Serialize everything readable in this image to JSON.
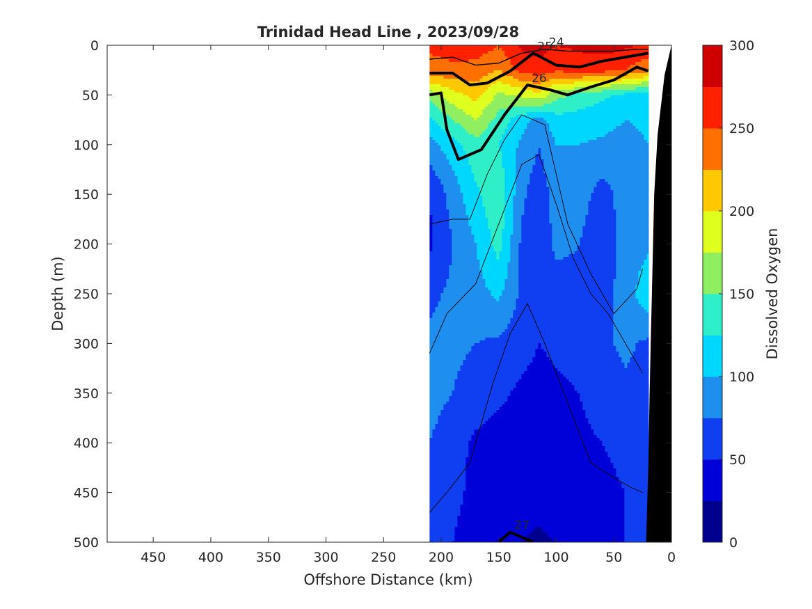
{
  "chart_data": {
    "type": "heatmap",
    "title": "Trinidad Head Line , 2023/09/28",
    "xlabel": "Offshore Distance (km)",
    "ylabel": "Depth (m)",
    "colorbar_label": "Dissolved Oxygen",
    "xlim": [
      490,
      0
    ],
    "ylim": [
      0,
      500
    ],
    "x_ticks": [
      450,
      400,
      350,
      300,
      250,
      200,
      150,
      100,
      50,
      0
    ],
    "y_ticks": [
      0,
      50,
      100,
      150,
      200,
      250,
      300,
      350,
      400,
      450,
      500
    ],
    "colorbar_range": [
      0,
      300
    ],
    "colorbar_ticks": [
      0,
      50,
      100,
      150,
      200,
      250,
      300
    ],
    "colorbar_levels": 12,
    "colormap": [
      "#00008f",
      "#0000d8",
      "#0f3ff0",
      "#1f8fef",
      "#00d7ff",
      "#2fefc8",
      "#8fef60",
      "#dfff1f",
      "#ffc800",
      "#ff7000",
      "#ff2000",
      "#cf0000"
    ],
    "data_coverage_km": [
      210,
      20
    ],
    "x": [
      210,
      190,
      170,
      150,
      130,
      115,
      100,
      80,
      60,
      40,
      20
    ],
    "y": [
      0,
      25,
      50,
      75,
      100,
      150,
      200,
      250,
      300,
      350,
      400,
      450,
      500
    ],
    "z": [
      [
        255,
        260,
        265,
        250,
        280,
        285,
        275,
        280,
        285,
        280,
        270
      ],
      [
        240,
        245,
        240,
        225,
        260,
        265,
        255,
        260,
        260,
        250,
        230
      ],
      [
        160,
        190,
        210,
        170,
        180,
        195,
        160,
        140,
        130,
        120,
        115
      ],
      [
        120,
        150,
        175,
        140,
        110,
        90,
        115,
        115,
        110,
        100,
        105
      ],
      [
        90,
        115,
        140,
        125,
        95,
        75,
        100,
        100,
        95,
        90,
        100
      ],
      [
        50,
        85,
        120,
        145,
        80,
        60,
        85,
        85,
        65,
        85,
        95
      ],
      [
        45,
        75,
        100,
        135,
        70,
        60,
        80,
        75,
        60,
        85,
        95
      ],
      [
        70,
        80,
        90,
        105,
        70,
        55,
        65,
        70,
        65,
        85,
        120
      ],
      [
        80,
        80,
        75,
        70,
        60,
        50,
        55,
        60,
        70,
        80,
        70
      ],
      [
        85,
        75,
        65,
        55,
        45,
        40,
        45,
        50,
        60,
        70,
        65
      ],
      [
        75,
        60,
        45,
        40,
        40,
        35,
        40,
        45,
        50,
        55,
        60
      ],
      [
        65,
        55,
        45,
        40,
        35,
        35,
        40,
        40,
        45,
        50,
        55
      ],
      [
        60,
        50,
        40,
        30,
        25,
        20,
        25,
        40,
        45,
        50,
        55
      ]
    ],
    "density_contours": [
      {
        "label": "24",
        "bold": false,
        "points": [
          [
            210,
            14
          ],
          [
            190,
            12
          ],
          [
            170,
            20
          ],
          [
            150,
            18
          ],
          [
            130,
            8
          ],
          [
            110,
            4
          ],
          [
            90,
            6
          ],
          [
            70,
            6
          ],
          [
            50,
            6
          ],
          [
            30,
            4
          ],
          [
            20,
            4
          ]
        ]
      },
      {
        "label": "25",
        "bold": true,
        "points": [
          [
            210,
            28
          ],
          [
            190,
            28
          ],
          [
            175,
            40
          ],
          [
            160,
            38
          ],
          [
            140,
            26
          ],
          [
            120,
            8
          ],
          [
            100,
            20
          ],
          [
            80,
            22
          ],
          [
            60,
            16
          ],
          [
            40,
            12
          ],
          [
            20,
            8
          ]
        ]
      },
      {
        "label": "26",
        "bold": true,
        "points": [
          [
            210,
            50
          ],
          [
            200,
            48
          ],
          [
            195,
            85
          ],
          [
            185,
            115
          ],
          [
            165,
            105
          ],
          [
            145,
            70
          ],
          [
            125,
            40
          ],
          [
            105,
            45
          ],
          [
            90,
            50
          ],
          [
            70,
            42
          ],
          [
            50,
            35
          ],
          [
            30,
            22
          ],
          [
            20,
            26
          ]
        ]
      },
      {
        "label": "27",
        "bold": true,
        "points": [
          [
            150,
            500
          ],
          [
            140,
            490
          ],
          [
            120,
            500
          ]
        ]
      }
    ],
    "thin_contours": [
      [
        [
          210,
          180
        ],
        [
          190,
          175
        ],
        [
          175,
          175
        ],
        [
          160,
          130
        ],
        [
          145,
          95
        ],
        [
          130,
          70
        ],
        [
          110,
          80
        ],
        [
          100,
          130
        ],
        [
          90,
          180
        ],
        [
          70,
          230
        ],
        [
          50,
          270
        ],
        [
          30,
          245
        ],
        [
          25,
          225
        ]
      ],
      [
        [
          210,
          310
        ],
        [
          195,
          270
        ],
        [
          170,
          240
        ],
        [
          150,
          180
        ],
        [
          130,
          120
        ],
        [
          115,
          110
        ],
        [
          100,
          160
        ],
        [
          85,
          215
        ],
        [
          70,
          250
        ],
        [
          55,
          270
        ],
        [
          40,
          300
        ],
        [
          25,
          330
        ]
      ],
      [
        [
          210,
          470
        ],
        [
          195,
          450
        ],
        [
          175,
          420
        ],
        [
          155,
          340
        ],
        [
          140,
          290
        ],
        [
          125,
          260
        ],
        [
          110,
          300
        ],
        [
          90,
          360
        ],
        [
          70,
          420
        ],
        [
          50,
          435
        ],
        [
          35,
          445
        ],
        [
          25,
          450
        ]
      ]
    ],
    "seafloor": [
      [
        22,
        500
      ],
      [
        20,
        420
      ],
      [
        19,
        350
      ],
      [
        18,
        300
      ],
      [
        17,
        250
      ],
      [
        15,
        150
      ],
      [
        12,
        90
      ],
      [
        6,
        30
      ],
      [
        0,
        0
      ],
      [
        0,
        500
      ]
    ]
  }
}
